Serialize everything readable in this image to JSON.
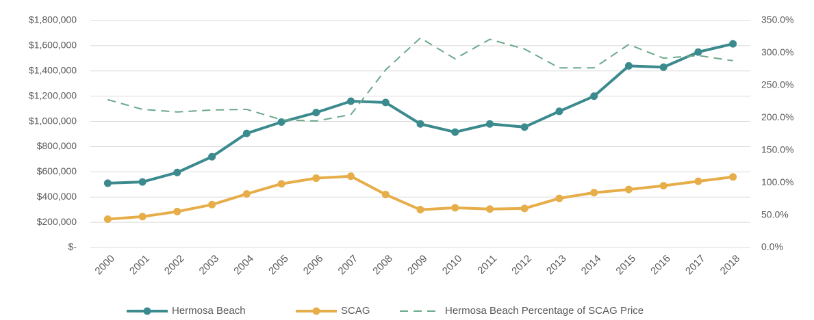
{
  "chart_data": {
    "type": "line",
    "categories": [
      "2000",
      "2001",
      "2002",
      "2003",
      "2004",
      "2005",
      "2006",
      "2007",
      "2008",
      "2009",
      "2010",
      "2011",
      "2012",
      "2013",
      "2014",
      "2015",
      "2016",
      "2017",
      "2018"
    ],
    "series": [
      {
        "name": "Hermosa Beach",
        "color": "#3b8a8e",
        "marker": "circle",
        "style": "solid",
        "values": [
          510000,
          520000,
          595000,
          720000,
          905000,
          995000,
          1070000,
          1160000,
          1150000,
          980000,
          915000,
          980000,
          955000,
          1080000,
          1200000,
          1440000,
          1430000,
          1550000,
          1615000
        ]
      },
      {
        "name": "SCAG",
        "color": "#e6ad48",
        "marker": "circle",
        "style": "solid",
        "values": [
          225000,
          245000,
          285000,
          340000,
          425000,
          505000,
          550000,
          565000,
          420000,
          300000,
          315000,
          305000,
          310000,
          390000,
          435000,
          460000,
          490000,
          525000,
          560000
        ]
      },
      {
        "name": "Hermosa Beach Percentage of SCAG Price",
        "color": "#6aa88a",
        "marker": "none",
        "style": "dashed",
        "axis": "y2",
        "values": [
          228,
          213,
          209,
          212,
          213,
          197,
          195,
          205,
          274,
          323,
          291,
          321,
          306,
          277,
          277,
          313,
          292,
          296,
          288
        ]
      }
    ],
    "ylim": [
      0,
      1800000
    ],
    "yticks": [
      {
        "value": 0,
        "label": "$-"
      },
      {
        "value": 200000,
        "label": "$200,000"
      },
      {
        "value": 400000,
        "label": "$400,000"
      },
      {
        "value": 600000,
        "label": "$600,000"
      },
      {
        "value": 800000,
        "label": "$800,000"
      },
      {
        "value": 1000000,
        "label": "$1,000,000"
      },
      {
        "value": 1200000,
        "label": "$1,200,000"
      },
      {
        "value": 1400000,
        "label": "$1,400,000"
      },
      {
        "value": 1600000,
        "label": "$1,600,000"
      },
      {
        "value": 1800000,
        "label": "$1,800,000"
      }
    ],
    "y2lim": [
      0,
      350
    ],
    "y2ticks": [
      {
        "value": 0,
        "label": "0.0%"
      },
      {
        "value": 50,
        "label": "50.0%"
      },
      {
        "value": 100,
        "label": "100.0%"
      },
      {
        "value": 150,
        "label": "150.0%"
      },
      {
        "value": 200,
        "label": "200.0%"
      },
      {
        "value": 250,
        "label": "250.0%"
      },
      {
        "value": 300,
        "label": "300.0%"
      },
      {
        "value": 350,
        "label": "350.0%"
      }
    ],
    "grid": true,
    "legend": "bottom"
  }
}
